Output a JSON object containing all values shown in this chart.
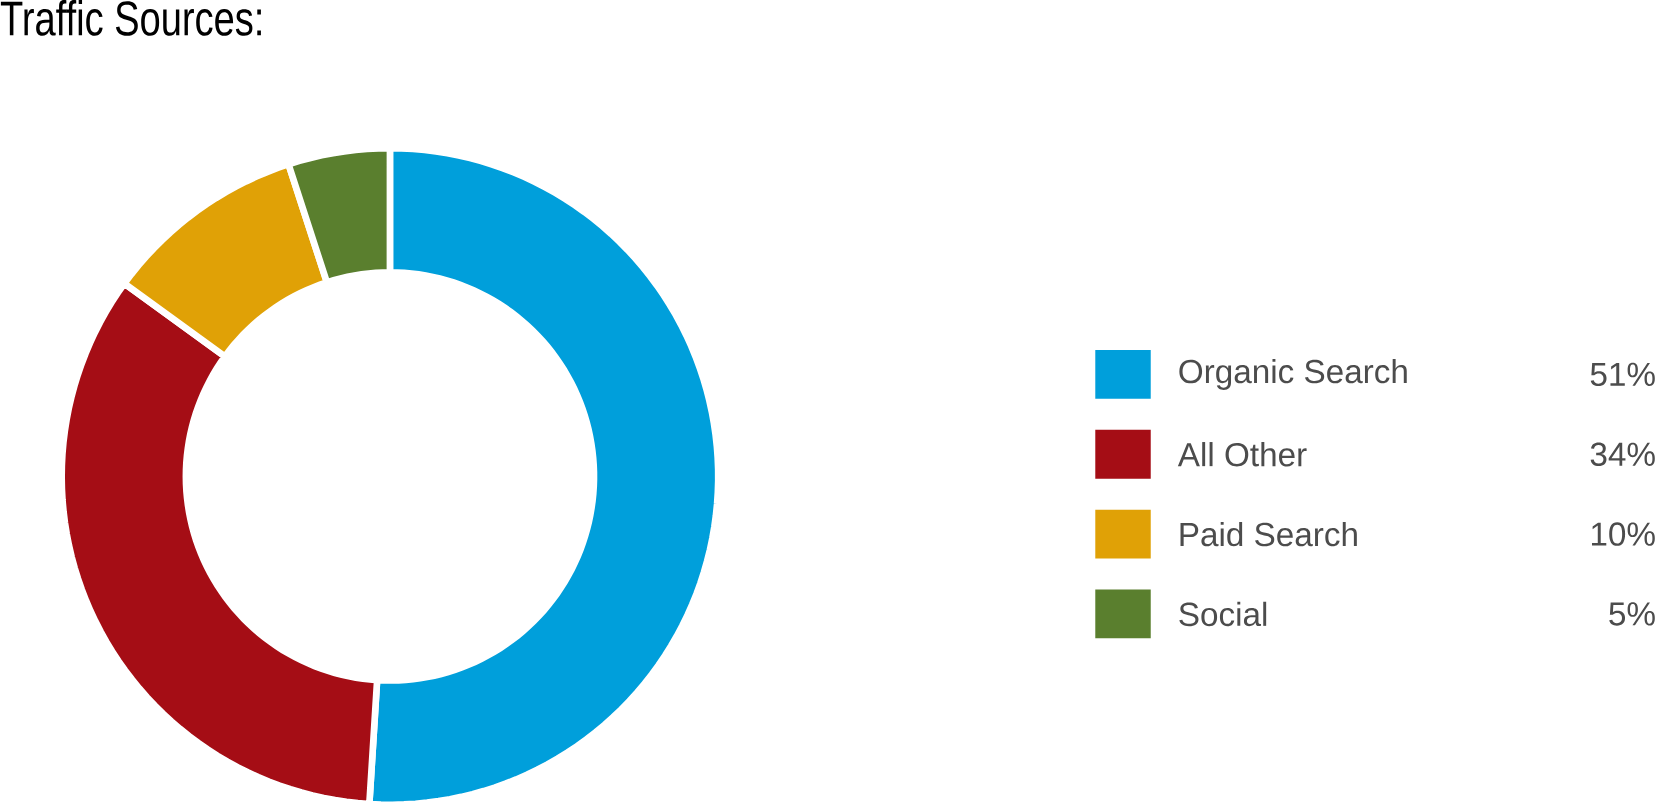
{
  "chart_data": {
    "type": "donut",
    "title": "Traffic Sources:",
    "categories": [
      "Organic Search",
      "All Other",
      "Paid Search",
      "Social"
    ],
    "values": [
      51,
      34,
      10,
      5
    ],
    "value_labels": [
      "51%",
      "34%",
      "10%",
      "5%"
    ],
    "colors": [
      "#009fdb",
      "#a50d15",
      "#e0a106",
      "#5a7f2e"
    ],
    "legend": "right"
  }
}
